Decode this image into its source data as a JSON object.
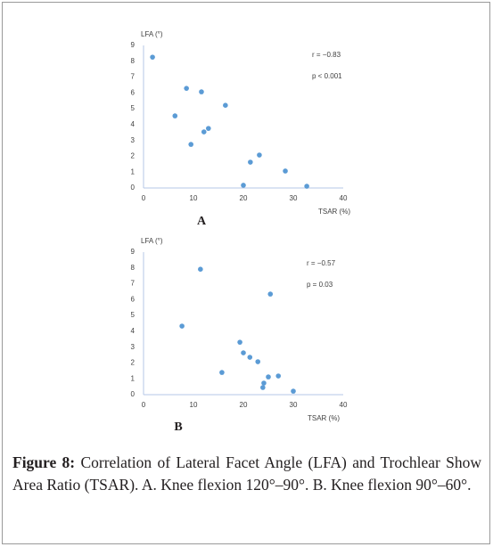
{
  "chart_data": [
    {
      "type": "scatter",
      "panel_label": "A",
      "y_label": "LFA (°)",
      "x_label": "TSAR (%)",
      "annotations": [
        "r = −0.83",
        "p < 0.001"
      ],
      "color": "#5b9bd5",
      "xlim": [
        0,
        40
      ],
      "ylim": [
        0,
        9
      ],
      "xticks": [
        0,
        10,
        20,
        30,
        40
      ],
      "yticks": [
        0,
        1,
        2,
        3,
        4,
        5,
        6,
        7,
        8,
        9
      ],
      "x": [
        1.8,
        8.6,
        11.6,
        16.4,
        6.3,
        13.0,
        12.1,
        9.5,
        23.2,
        21.4,
        28.4,
        20.0,
        32.7
      ],
      "values": [
        8.26,
        6.29,
        6.07,
        5.22,
        4.55,
        3.76,
        3.54,
        2.75,
        2.08,
        1.63,
        1.07,
        0.17,
        0.11
      ]
    },
    {
      "type": "scatter",
      "panel_label": "B",
      "y_label": "LFA (°)",
      "x_label": "TSAR (%)",
      "annotations": [
        "r = −0.57",
        "p = 0.03"
      ],
      "color": "#5b9bd5",
      "xlim": [
        0,
        40
      ],
      "ylim": [
        0,
        9
      ],
      "xticks": [
        0,
        10,
        20,
        30,
        40
      ],
      "yticks": [
        0,
        1,
        2,
        3,
        4,
        5,
        6,
        7,
        8,
        9
      ],
      "x": [
        11.4,
        25.4,
        7.7,
        19.3,
        20.0,
        21.3,
        22.9,
        15.7,
        27.0,
        25.0,
        24.1,
        23.9,
        30.0
      ],
      "values": [
        7.92,
        6.35,
        4.33,
        3.31,
        2.64,
        2.36,
        2.08,
        1.4,
        1.18,
        1.12,
        0.73,
        0.45,
        0.22
      ]
    }
  ],
  "caption": {
    "label": "Figure 8:",
    "text": "Correlation of Lateral Facet Angle (LFA) and Trochlear Show Area Ratio (TSAR). A. Knee flexion 120°–90°. B. Knee flexion 90°–60°."
  }
}
